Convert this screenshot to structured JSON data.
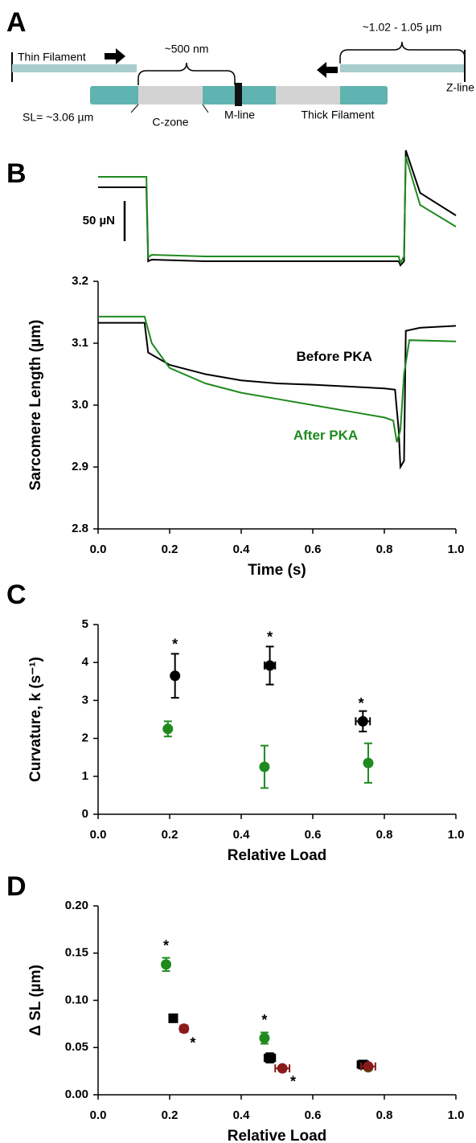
{
  "diagram": {
    "panel": "A",
    "thin_filament": "Thin Filament",
    "c_zone_width": "~500 nm",
    "thin_length": "~1.02 - 1.05 µm",
    "sl": "SL= ~3.06 µm",
    "c_zone": "C-zone",
    "m_line": "M-line",
    "thick_filament": "Thick Filament",
    "z_line": "Z-line"
  },
  "chart_data": [
    {
      "type": "line",
      "panel": "B",
      "xlim": [
        0,
        1
      ],
      "ylim": [
        0,
        145
      ],
      "scale_bar": {
        "value": 50,
        "label": "50 µN"
      },
      "series": [
        {
          "color": "#000000",
          "x": [
            0,
            0.135,
            0.14,
            0.15,
            0.3,
            0.6,
            0.84,
            0.845,
            0.855,
            0.86,
            0.9,
            1.0
          ],
          "values": [
            97,
            97,
            5,
            7,
            5,
            5,
            5,
            0,
            5,
            143,
            90,
            62
          ]
        },
        {
          "color": "#1f8a1f",
          "x": [
            0,
            0.135,
            0.14,
            0.15,
            0.3,
            0.6,
            0.84,
            0.845,
            0.855,
            0.86,
            0.9,
            1.0
          ],
          "values": [
            110,
            110,
            10,
            13,
            11,
            11,
            11,
            3,
            11,
            135,
            75,
            48
          ]
        }
      ]
    },
    {
      "type": "line",
      "xlabel": "Time (s)",
      "ylabel": "Sarcomere Length (µm)",
      "xlim": [
        0,
        1
      ],
      "ylim": [
        2.8,
        3.2
      ],
      "xticks": [
        {
          "value": 0,
          "label": "0.0"
        },
        0.2,
        0.4,
        0.6,
        0.8,
        {
          "value": 1,
          "label": "1.0"
        }
      ],
      "yticks": [
        2.8,
        2.9,
        {
          "value": 3,
          "label": "3.0"
        },
        3.1,
        3.2
      ],
      "series": [
        {
          "color": "#000000",
          "x": [
            0,
            0.13,
            0.14,
            0.2,
            0.3,
            0.4,
            0.5,
            0.6,
            0.7,
            0.8,
            0.83,
            0.84,
            0.845,
            0.855,
            0.86,
            0.9,
            1.0
          ],
          "values": [
            3.133,
            3.133,
            3.085,
            3.065,
            3.05,
            3.04,
            3.035,
            3.033,
            3.03,
            3.027,
            3.025,
            2.96,
            2.9,
            2.91,
            3.12,
            3.125,
            3.128
          ]
        },
        {
          "color": "#1f8a1f",
          "x": [
            0,
            0.13,
            0.15,
            0.2,
            0.3,
            0.4,
            0.5,
            0.6,
            0.7,
            0.8,
            0.825,
            0.835,
            0.845,
            0.855,
            0.87,
            1.0
          ],
          "values": [
            3.143,
            3.143,
            3.1,
            3.06,
            3.035,
            3.02,
            3.01,
            3.0,
            2.99,
            2.98,
            2.975,
            2.94,
            2.96,
            3.05,
            3.105,
            3.103
          ]
        }
      ],
      "annotations": [
        {
          "text": "Before PKA",
          "x": 0.66,
          "y": 3.077,
          "color": "#000000"
        },
        {
          "text": "After PKA",
          "x": 0.636,
          "y": 2.95,
          "color": "#1f8a1f"
        }
      ]
    },
    {
      "type": "scatter",
      "panel": "C",
      "xlabel": "Relative Load",
      "ylabel": "Curvature, k (s⁻¹)",
      "xlim": [
        0,
        1
      ],
      "ylim": [
        0,
        5
      ],
      "xticks": [
        {
          "value": 0,
          "label": "0.0"
        },
        0.2,
        0.4,
        0.6,
        0.8,
        {
          "value": 1,
          "label": "1.0"
        }
      ],
      "yticks": [
        0,
        1,
        2,
        3,
        4,
        5
      ],
      "series": [
        {
          "color": "#000000",
          "marker": "circle",
          "x": [
            0.215,
            0.48,
            0.74
          ],
          "values": [
            3.65,
            3.92,
            2.45
          ],
          "yerr": [
            0.58,
            0.5,
            0.27
          ],
          "xerr": [
            null,
            0.015,
            0.02
          ]
        },
        {
          "color": "#1f8a1f",
          "marker": "circle",
          "x": [
            0.195,
            0.465,
            0.755
          ],
          "values": [
            2.25,
            1.25,
            1.35
          ],
          "yerr": [
            0.2,
            0.56,
            0.52
          ],
          "xerr": [
            null,
            null,
            null
          ]
        }
      ],
      "annotations": [
        {
          "text": "*",
          "x": 0.215,
          "y": 4.45,
          "color": "#000000"
        },
        {
          "text": "*",
          "x": 0.48,
          "y": 4.65,
          "color": "#000000"
        },
        {
          "text": "*",
          "x": 0.735,
          "y": 2.9,
          "color": "#000000"
        }
      ]
    },
    {
      "type": "scatter",
      "panel": "D",
      "xlabel": "Relative Load",
      "ylabel": "Δ SL (µm)",
      "xlim": [
        0,
        1
      ],
      "ylim": [
        0,
        0.2
      ],
      "xticks": [
        {
          "value": 0,
          "label": "0.0"
        },
        0.2,
        0.4,
        0.6,
        0.8,
        {
          "value": 1,
          "label": "1.0"
        }
      ],
      "yticks": [
        {
          "value": 0,
          "label": "0.00"
        },
        {
          "value": 0.05,
          "label": "0.05"
        },
        {
          "value": 0.1,
          "label": "0.10"
        },
        {
          "value": 0.15,
          "label": "0.15"
        },
        {
          "value": 0.2,
          "label": "0.20"
        }
      ],
      "series": [
        {
          "color": "#1f8a1f",
          "marker": "circle",
          "x": [
            0.19,
            0.465,
            0.755
          ],
          "values": [
            0.138,
            0.06,
            0.029
          ],
          "yerr": [
            0.007,
            0.006,
            0.003
          ],
          "xerr": [
            null,
            null,
            null
          ]
        },
        {
          "color": "#000000",
          "marker": "square",
          "x": [
            0.21,
            0.48,
            0.74
          ],
          "values": [
            0.081,
            0.039,
            0.032
          ],
          "yerr": [
            0.004,
            0.005,
            0.003
          ],
          "xerr": [
            null,
            0.015,
            0.015
          ]
        },
        {
          "color": "#8b1a1a",
          "marker": "circle",
          "x": [
            0.24,
            0.515,
            0.755
          ],
          "values": [
            0.07,
            0.028,
            0.03
          ],
          "yerr": [
            null,
            null,
            null
          ],
          "xerr": [
            0.01,
            0.02,
            0.02
          ]
        }
      ],
      "annotations": [
        {
          "text": "*",
          "x": 0.19,
          "y": 0.157,
          "color": "#000000"
        },
        {
          "text": "*",
          "x": 0.465,
          "y": 0.078,
          "color": "#000000"
        },
        {
          "text": "*",
          "x": 0.265,
          "y": 0.054,
          "color": "#000000"
        },
        {
          "text": "*",
          "x": 0.545,
          "y": 0.013,
          "color": "#000000"
        }
      ]
    }
  ]
}
